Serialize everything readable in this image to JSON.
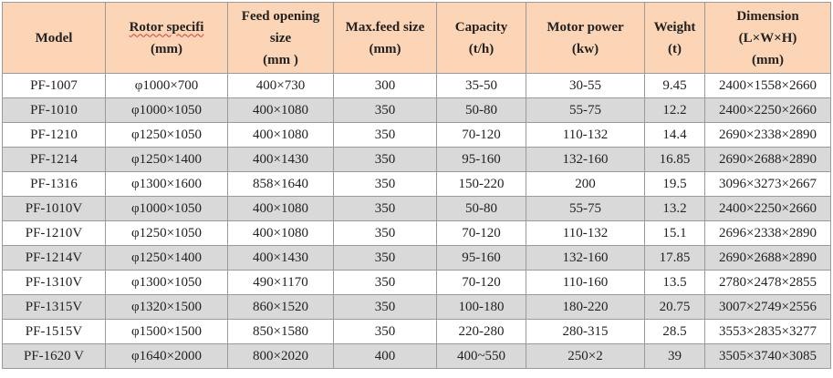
{
  "headers": [
    [
      "Model"
    ],
    [
      "Rotor specifi",
      "(mm)"
    ],
    [
      "Feed opening",
      "size",
      "(mm )"
    ],
    [
      "Max.feed size",
      "(mm)"
    ],
    [
      "Capacity",
      "(t/h)"
    ],
    [
      "Motor power",
      "(kw)"
    ],
    [
      "Weight",
      "(t)"
    ],
    [
      "Dimension",
      "(L×W×H)",
      "(mm)"
    ]
  ],
  "rows": [
    [
      "PF-1007",
      "φ1000×700",
      "400×730",
      "300",
      "35-50",
      "30-55",
      "9.45",
      "2400×1558×2660"
    ],
    [
      "PF-1010",
      "φ1000×1050",
      "400×1080",
      "350",
      "50-80",
      "55-75",
      "12.2",
      "2400×2250×2660"
    ],
    [
      "PF-1210",
      "φ1250×1050",
      "400×1080",
      "350",
      "70-120",
      "110-132",
      "14.4",
      "2690×2338×2890"
    ],
    [
      "PF-1214",
      "φ1250×1400",
      "400×1430",
      "350",
      "95-160",
      "132-160",
      "16.85",
      "2690×2688×2890"
    ],
    [
      "PF-1316",
      "φ1300×1600",
      "858×1640",
      "350",
      "150-220",
      "200",
      "19.5",
      "3096×3273×2667"
    ],
    [
      "PF-1010V",
      "φ1000×1050",
      "400×1080",
      "350",
      "50-80",
      "55-75",
      "13.2",
      "2400×2250×2660"
    ],
    [
      "PF-1210V",
      "φ1250×1050",
      "400×1080",
      "350",
      "70-120",
      "110-132",
      "15.1",
      "2696×2338×2890"
    ],
    [
      "PF-1214V",
      "φ1250×1400",
      "400×1430",
      "350",
      "95-160",
      "132-160",
      "17.85",
      "2690×2688×2890"
    ],
    [
      "PF-1310V",
      "φ1300×1050",
      "490×1170",
      "350",
      "70-120",
      "110-160",
      "13.5",
      "2780×2478×2855"
    ],
    [
      "PF-1315V",
      "φ1320×1500",
      "860×1520",
      "350",
      "100-180",
      "180-220",
      "20.75",
      "3007×2749×2556"
    ],
    [
      "PF-1515V",
      "φ1500×1500",
      "850×1580",
      "350",
      "220-280",
      "280-315",
      "28.5",
      "3553×2835×3277"
    ],
    [
      "PF-1620 V",
      "φ1640×2000",
      "800×2020",
      "400",
      "400~550",
      "250×2",
      "39",
      "3505×3740×3085"
    ]
  ],
  "colors": {
    "header_bg": "#fbd5b5",
    "row_alt_bg": "#d9d9d9",
    "border": "#9a9a9a"
  }
}
